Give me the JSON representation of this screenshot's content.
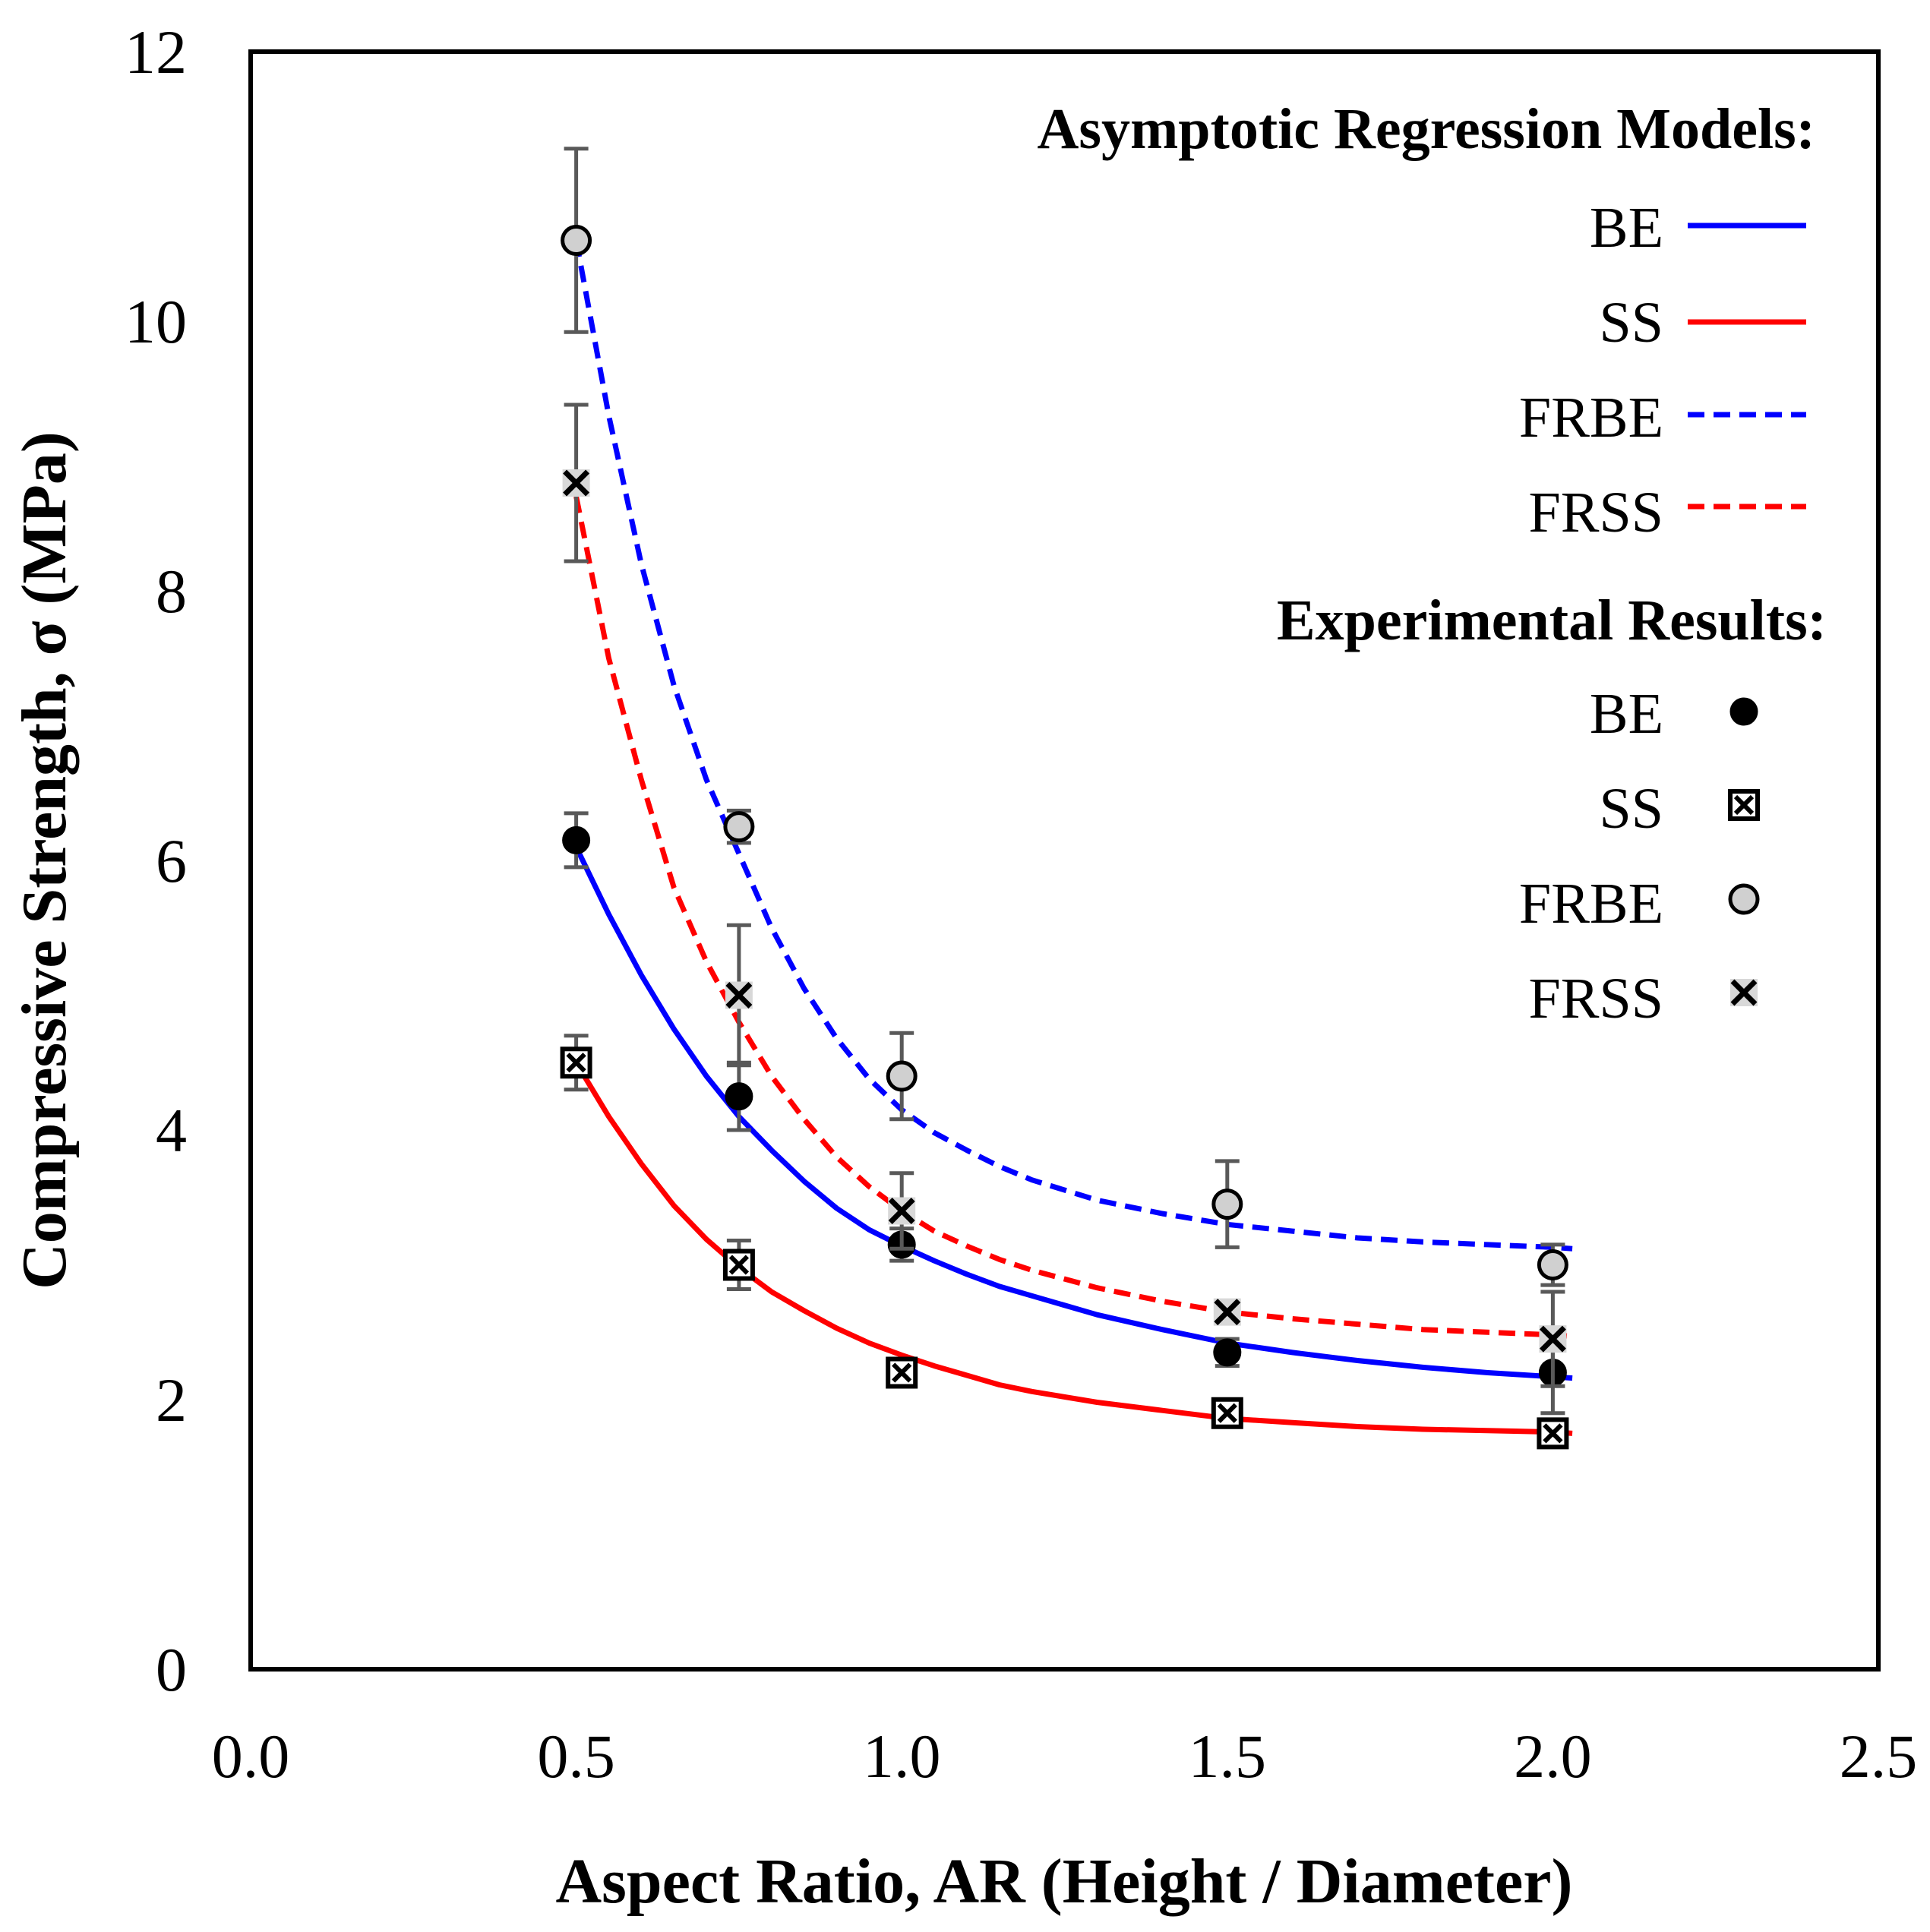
{
  "chart_data": {
    "type": "scatter",
    "xlabel": "Aspect Ratio, AR (Height / Diameter)",
    "ylabel": "Compressive Strength, σ (MPa)",
    "xlim": [
      0.0,
      2.5
    ],
    "ylim": [
      0,
      12
    ],
    "x_ticks": [
      0.0,
      0.5,
      1.0,
      1.5,
      2.0,
      2.5
    ],
    "x_tick_labels": [
      "0.0",
      "0.5",
      "1.0",
      "1.5",
      "2.0",
      "2.5"
    ],
    "y_ticks": [
      0,
      2,
      4,
      6,
      8,
      10,
      12
    ],
    "y_tick_labels": [
      "0",
      "2",
      "4",
      "6",
      "8",
      "10",
      "12"
    ],
    "grid": false,
    "legend_position": "top-right",
    "legend": {
      "models_heading": "Asymptotic Regression Models:",
      "results_heading": "Experimental Results:"
    },
    "models": [
      {
        "name": "BE",
        "color": "#0000ff",
        "dashed": false,
        "x": [
          0.5,
          0.55,
          0.6,
          0.65,
          0.7,
          0.75,
          0.8,
          0.85,
          0.9,
          0.95,
          1.0,
          1.05,
          1.1,
          1.15,
          1.2,
          1.3,
          1.4,
          1.5,
          1.6,
          1.7,
          1.8,
          1.9,
          2.0,
          2.03
        ],
        "y": [
          6.1,
          5.6,
          5.15,
          4.75,
          4.4,
          4.1,
          3.85,
          3.62,
          3.42,
          3.26,
          3.14,
          3.03,
          2.93,
          2.84,
          2.77,
          2.63,
          2.52,
          2.42,
          2.35,
          2.29,
          2.24,
          2.2,
          2.17,
          2.16
        ]
      },
      {
        "name": "SS",
        "color": "#ff0000",
        "dashed": false,
        "x": [
          0.5,
          0.55,
          0.6,
          0.65,
          0.7,
          0.75,
          0.8,
          0.85,
          0.9,
          0.95,
          1.0,
          1.05,
          1.1,
          1.15,
          1.2,
          1.3,
          1.4,
          1.5,
          1.6,
          1.7,
          1.8,
          1.9,
          2.0,
          2.03
        ],
        "y": [
          4.5,
          4.1,
          3.75,
          3.44,
          3.19,
          2.98,
          2.8,
          2.66,
          2.53,
          2.42,
          2.33,
          2.25,
          2.18,
          2.11,
          2.06,
          1.98,
          1.92,
          1.86,
          1.83,
          1.8,
          1.78,
          1.77,
          1.76,
          1.75
        ]
      },
      {
        "name": "FRBE",
        "color": "#0000ff",
        "dashed": true,
        "x": [
          0.5,
          0.55,
          0.6,
          0.65,
          0.7,
          0.75,
          0.8,
          0.85,
          0.9,
          0.95,
          1.0,
          1.05,
          1.1,
          1.15,
          1.2,
          1.3,
          1.4,
          1.5,
          1.6,
          1.7,
          1.8,
          1.9,
          2.0,
          2.03
        ],
        "y": [
          10.6,
          9.3,
          8.2,
          7.3,
          6.6,
          6.05,
          5.5,
          5.05,
          4.68,
          4.38,
          4.15,
          3.98,
          3.85,
          3.73,
          3.63,
          3.48,
          3.38,
          3.3,
          3.25,
          3.2,
          3.17,
          3.15,
          3.13,
          3.12
        ]
      },
      {
        "name": "FRSS",
        "color": "#ff0000",
        "dashed": true,
        "x": [
          0.5,
          0.55,
          0.6,
          0.65,
          0.7,
          0.75,
          0.8,
          0.85,
          0.9,
          0.95,
          1.0,
          1.05,
          1.1,
          1.15,
          1.2,
          1.3,
          1.4,
          1.5,
          1.6,
          1.7,
          1.8,
          1.9,
          2.0,
          2.03
        ],
        "y": [
          8.7,
          7.5,
          6.6,
          5.8,
          5.25,
          4.8,
          4.4,
          4.08,
          3.8,
          3.58,
          3.4,
          3.25,
          3.14,
          3.04,
          2.96,
          2.83,
          2.73,
          2.65,
          2.6,
          2.56,
          2.52,
          2.5,
          2.48,
          2.47
        ]
      }
    ],
    "experimental": [
      {
        "name": "BE",
        "marker": "filled-circle",
        "x": [
          0.5,
          0.75,
          1.0,
          1.5,
          2.0
        ],
        "y": [
          6.15,
          4.25,
          3.15,
          2.35,
          2.2
        ],
        "err": [
          0.2,
          0.25,
          0.12,
          0.1,
          0.3
        ]
      },
      {
        "name": "SS",
        "marker": "x-box",
        "x": [
          0.5,
          0.75,
          1.0,
          1.5,
          2.0
        ],
        "y": [
          4.5,
          3.0,
          2.2,
          1.9,
          1.75
        ],
        "err": [
          0.2,
          0.18,
          0.1,
          0.06,
          0.05
        ]
      },
      {
        "name": "FRBE",
        "marker": "gray-circle",
        "x": [
          0.5,
          0.75,
          1.0,
          1.5,
          2.0
        ],
        "y": [
          10.6,
          6.25,
          4.4,
          3.45,
          3.0
        ],
        "err": [
          0.68,
          0.12,
          0.32,
          0.32,
          0.15
        ]
      },
      {
        "name": "FRSS",
        "marker": "x-cross",
        "x": [
          0.5,
          0.75,
          1.0,
          1.5,
          2.0
        ],
        "y": [
          8.8,
          5.0,
          3.4,
          2.65,
          2.45
        ],
        "err": [
          0.58,
          0.52,
          0.28,
          0.0,
          0.35
        ]
      }
    ]
  }
}
